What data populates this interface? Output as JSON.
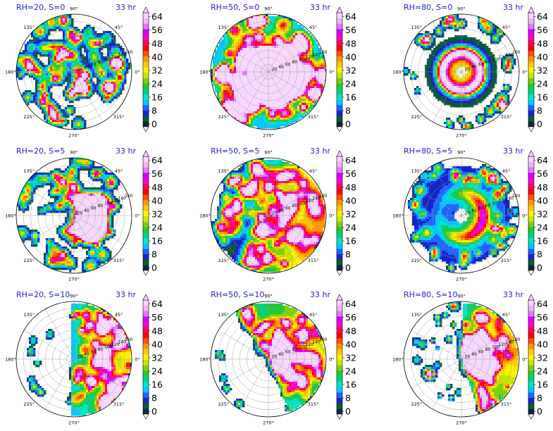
{
  "chart_data": {
    "type": "heatmap",
    "layout": "3x3 grid of polar plots with colorbars",
    "time_label": "33 hr",
    "colormap": [
      "#0b2a3a",
      "#0b5a3a",
      "#1426c8",
      "#1e64ff",
      "#00c8ff",
      "#00e6c8",
      "#00d278",
      "#22c83c",
      "#7cd200",
      "#c8e600",
      "#fff000",
      "#ffc800",
      "#ff9600",
      "#ff5000",
      "#ff0000",
      "#ff0064",
      "#ff00c8",
      "#d200ff",
      "#e678ff",
      "#f0b4ff",
      "#f8d8ff"
    ],
    "colorbar": {
      "ticks": [
        "0",
        "8",
        "16",
        "24",
        "32",
        "40",
        "48",
        "56",
        "64"
      ],
      "min": 0,
      "max": 68
    },
    "angle_labels": [
      "0°",
      "45°",
      "90°",
      "135°",
      "180°",
      "225°",
      "270°",
      "315°"
    ],
    "radius_labels": [
      "20",
      "40",
      "60",
      "80",
      "100",
      "120",
      "140",
      "160"
    ],
    "panels": [
      {
        "title": "RH=20, S=0",
        "time": "33 hr",
        "structure": "scattered convection everywhere",
        "pattern": "scatter",
        "seed": 11
      },
      {
        "title": "RH=50, S=0",
        "time": "33 hr",
        "structure": "spiral rainbands filling disk",
        "pattern": "spiral",
        "seed": 22
      },
      {
        "title": "RH=80, S=0",
        "time": "33 hr",
        "structure": "intense symmetric eyewall ring with eye",
        "pattern": "ring",
        "seed": 33
      },
      {
        "title": "RH=20, S=5",
        "time": "33 hr",
        "structure": "scattered cells, concentration to the east",
        "pattern": "scatter_shear",
        "seed": 44
      },
      {
        "title": "RH=50, S=5",
        "time": "33 hr",
        "structure": "broad asymmetric precipitation field",
        "pattern": "broad_shear",
        "seed": 55
      },
      {
        "title": "RH=80, S=5",
        "time": "33 hr",
        "structure": "asymmetric ring open to the west",
        "pattern": "ring_shear",
        "seed": 66
      },
      {
        "title": "RH=20, S=10",
        "time": "33 hr",
        "structure": "convection confined to eastern half",
        "pattern": "east_half",
        "seed": 77
      },
      {
        "title": "RH=50, S=10",
        "time": "33 hr",
        "structure": "convection in northeast sector",
        "pattern": "northeast",
        "seed": 88
      },
      {
        "title": "RH=80, S=10",
        "time": "33 hr",
        "structure": "east sector plus scattered western cells",
        "pattern": "east_scatter",
        "seed": 99
      }
    ]
  }
}
